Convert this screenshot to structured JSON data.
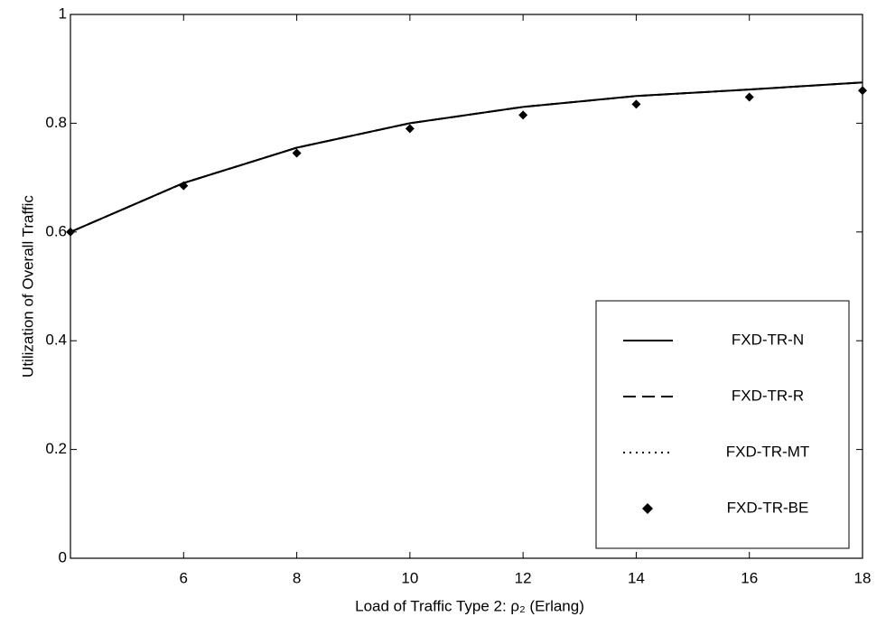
{
  "chart_data": {
    "type": "line",
    "xlabel": "Load of Traffic Type 2: ρ₂ (Erlang)",
    "ylabel": "Utilization of Overall Traffic",
    "x": [
      4,
      6,
      8,
      10,
      12,
      14,
      16,
      18
    ],
    "series": [
      {
        "name": "FXD-TR-N",
        "color": "#000000",
        "linestyle": "solid",
        "marker": "none",
        "values": [
          0.6,
          0.69,
          0.755,
          0.8,
          0.83,
          0.85,
          0.862,
          0.875
        ]
      },
      {
        "name": "FXD-TR-R",
        "color": "#000000",
        "linestyle": "dashed",
        "marker": "none",
        "values": [
          0.6,
          0.69,
          0.755,
          0.8,
          0.83,
          0.85,
          0.862,
          0.875
        ]
      },
      {
        "name": "FXD-TR-MT",
        "color": "#000000",
        "linestyle": "dotted",
        "marker": "none",
        "values": [
          0.6,
          0.69,
          0.755,
          0.8,
          0.83,
          0.85,
          0.862,
          0.875
        ]
      },
      {
        "name": "FXD-TR-BE",
        "color": "#000000",
        "linestyle": "none",
        "marker": "diamond",
        "values": [
          0.6,
          0.685,
          0.745,
          0.79,
          0.815,
          0.835,
          0.848,
          0.86
        ]
      }
    ],
    "xlim": [
      4,
      18
    ],
    "xticks": [
      6,
      8,
      10,
      12,
      14,
      16,
      18
    ],
    "ylim": [
      0,
      1
    ],
    "yticks": [
      0,
      0.2,
      0.4,
      0.6,
      0.8,
      1
    ],
    "grid": false,
    "legend": "lower right"
  }
}
